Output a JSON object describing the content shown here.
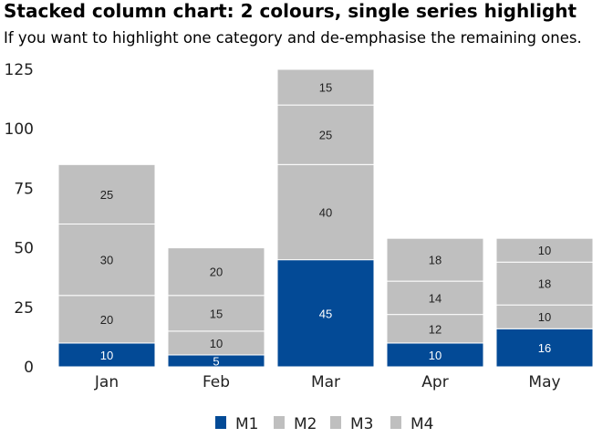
{
  "title": "Stacked column chart: 2 colours, single series highlight",
  "subtitle": "If you want to highlight one category and de-emphasise the remaining ones.",
  "chart_data": {
    "type": "bar",
    "stacked": true,
    "categories": [
      "Jan",
      "Feb",
      "Mar",
      "Apr",
      "May"
    ],
    "series": [
      {
        "name": "M1",
        "values": [
          10,
          5,
          45,
          10,
          16
        ],
        "color": "#034a96"
      },
      {
        "name": "M2",
        "values": [
          20,
          10,
          40,
          12,
          10
        ],
        "color": "#bfbfbf"
      },
      {
        "name": "M3",
        "values": [
          30,
          15,
          25,
          14,
          18
        ],
        "color": "#bfbfbf"
      },
      {
        "name": "M4",
        "values": [
          25,
          20,
          15,
          18,
          10
        ],
        "color": "#bfbfbf"
      }
    ],
    "ylim": [
      0,
      125
    ],
    "yticks": [
      0,
      25,
      50,
      75,
      100,
      125
    ],
    "grid": false,
    "legend": "bottom",
    "highlight_color": "#034a96",
    "muted_color": "#bfbfbf"
  }
}
